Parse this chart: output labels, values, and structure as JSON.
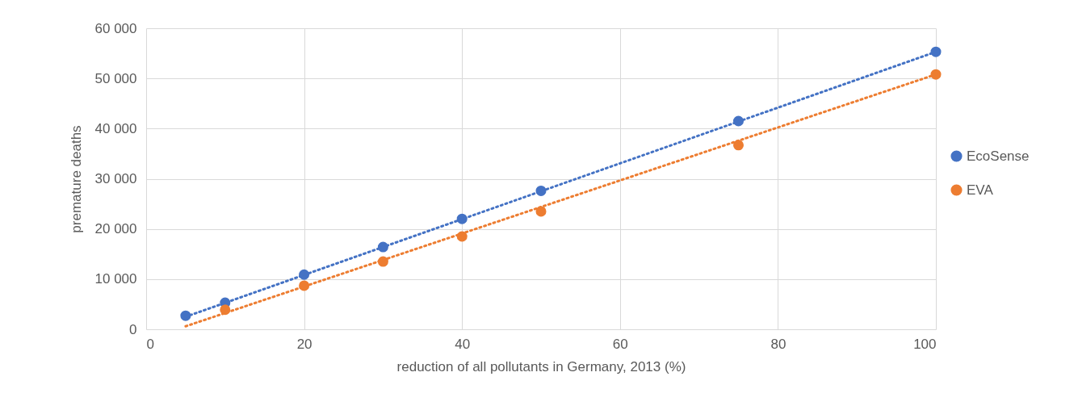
{
  "chart_data": {
    "type": "scatter",
    "xlabel": "reduction of all pollutants in Germany, 2013 (%)",
    "ylabel": "premature deaths",
    "xlim": [
      0,
      100
    ],
    "xticks": [
      0,
      20,
      40,
      60,
      80,
      100
    ],
    "ylim": [
      0,
      60000
    ],
    "yticks": [
      0,
      {
        "value": 10000,
        "label": "10 000"
      },
      {
        "value": 20000,
        "label": "20 000"
      },
      {
        "value": 30000,
        "label": "30 000"
      },
      {
        "value": 40000,
        "label": "40 000"
      },
      {
        "value": 50000,
        "label": "50 000"
      },
      {
        "value": 60000,
        "label": "60 000"
      }
    ],
    "grid": true,
    "legend": "right",
    "marker": "circle",
    "series": [
      {
        "name": "EcoSense",
        "color": "#4472c4",
        "x": [
          5,
          10,
          20,
          30,
          40,
          50,
          75,
          100
        ],
        "values": [
          2700,
          5300,
          10900,
          16400,
          22000,
          27600,
          41500,
          55300
        ]
      },
      {
        "name": "EVA",
        "color": "#ed7d31",
        "x": [
          10,
          20,
          30,
          40,
          50,
          75,
          100
        ],
        "values": [
          3900,
          8700,
          13500,
          18500,
          23500,
          36700,
          50800
        ]
      },
      {
        "type": "line",
        "color": "#4472c4",
        "line_style": "dotted",
        "marker": "none",
        "x": [
          5,
          100
        ],
        "values": [
          2500,
          55300
        ]
      },
      {
        "type": "line",
        "color": "#ed7d31",
        "line_style": "dotted",
        "marker": "none",
        "x": [
          5,
          100
        ],
        "values": [
          600,
          50800
        ]
      }
    ]
  }
}
